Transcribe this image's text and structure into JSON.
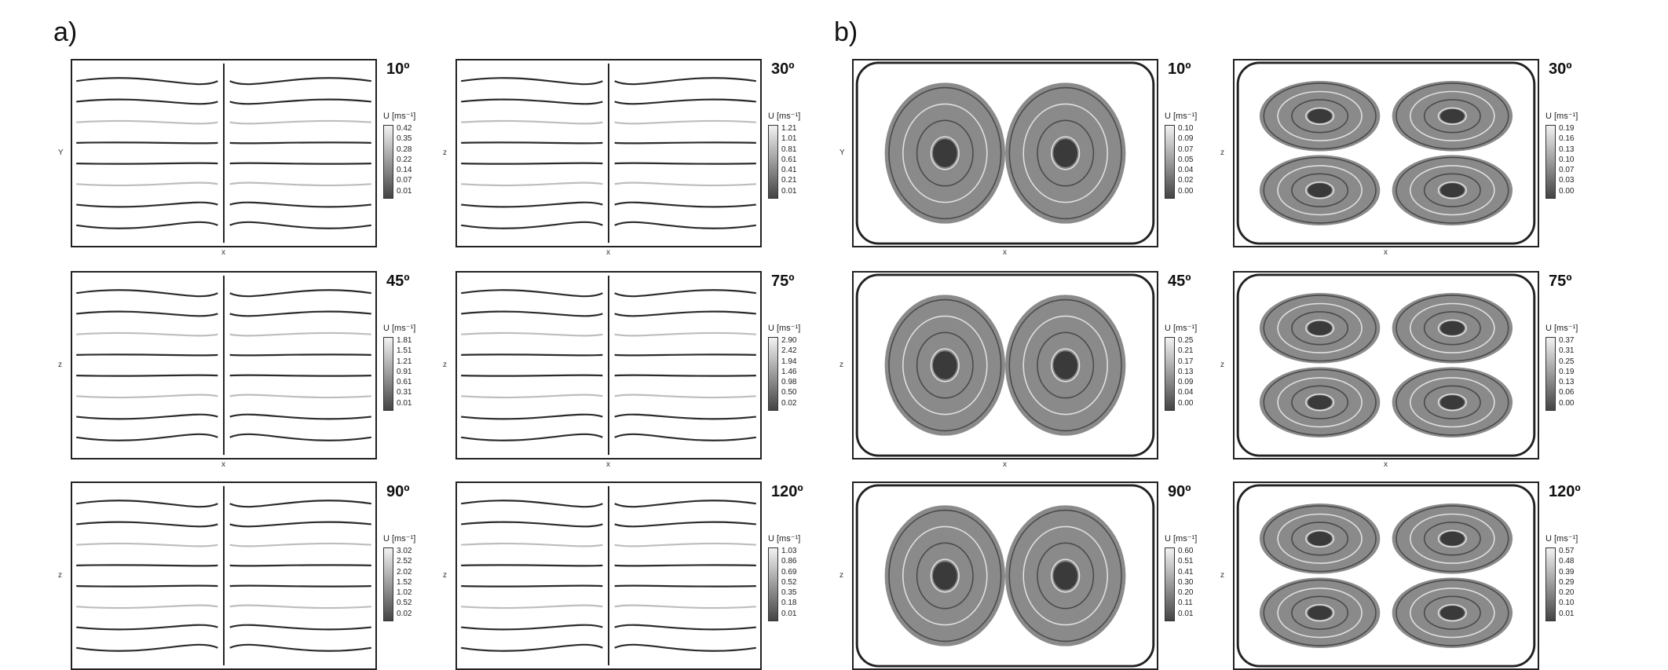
{
  "panels": [
    {
      "label": "a)",
      "plots": [
        {
          "angle": "10º",
          "v_axis": "Y",
          "h_axis": "x",
          "unit": "U [ms⁻¹]",
          "ticks": [
            "0.42",
            "0.35",
            "0.28",
            "0.22",
            "0.14",
            "0.07",
            "0.01"
          ]
        },
        {
          "angle": "30º",
          "v_axis": "z",
          "h_axis": "x",
          "unit": "U [ms⁻¹]",
          "ticks": [
            "1.21",
            "1.01",
            "0.81",
            "0.61",
            "0.41",
            "0.21",
            "0.01"
          ]
        },
        {
          "angle": "45º",
          "v_axis": "z",
          "h_axis": "x",
          "unit": "U [ms⁻¹]",
          "ticks": [
            "1.81",
            "1.51",
            "1.21",
            "0.91",
            "0.61",
            "0.31",
            "0.01"
          ]
        },
        {
          "angle": "75º",
          "v_axis": "z",
          "h_axis": "x",
          "unit": "U [ms⁻¹]",
          "ticks": [
            "2.90",
            "2.42",
            "1.94",
            "1.46",
            "0.98",
            "0.50",
            "0.02"
          ]
        },
        {
          "angle": "90º",
          "v_axis": "z",
          "h_axis": "",
          "unit": "U [ms⁻¹]",
          "ticks": [
            "3.02",
            "2.52",
            "2.02",
            "1.52",
            "1.02",
            "0.52",
            "0.02"
          ]
        },
        {
          "angle": "120º",
          "v_axis": "z",
          "h_axis": "",
          "unit": "U [ms⁻¹]",
          "ticks": [
            "1.03",
            "0.86",
            "0.69",
            "0.52",
            "0.35",
            "0.18",
            "0.01"
          ]
        }
      ]
    },
    {
      "label": "b)",
      "plots": [
        {
          "angle": "10º",
          "v_axis": "Y",
          "h_axis": "x",
          "unit": "U [ms⁻¹]",
          "ticks": [
            "0.10",
            "0.09",
            "0.07",
            "0.05",
            "0.04",
            "0.02",
            "0.00"
          ]
        },
        {
          "angle": "30º",
          "v_axis": "z",
          "h_axis": "x",
          "unit": "U [ms⁻¹]",
          "ticks": [
            "0.19",
            "0.16",
            "0.13",
            "0.10",
            "0.07",
            "0.03",
            "0.00"
          ]
        },
        {
          "angle": "45º",
          "v_axis": "z",
          "h_axis": "x",
          "unit": "U [ms⁻¹]",
          "ticks": [
            "0.25",
            "0.21",
            "0.17",
            "0.13",
            "0.09",
            "0.04",
            "0.00"
          ]
        },
        {
          "angle": "75º",
          "v_axis": "z",
          "h_axis": "x",
          "unit": "U [ms⁻¹]",
          "ticks": [
            "0.37",
            "0.31",
            "0.25",
            "0.19",
            "0.13",
            "0.06",
            "0.00"
          ]
        },
        {
          "angle": "90º",
          "v_axis": "z",
          "h_axis": "",
          "unit": "U [ms⁻¹]",
          "ticks": [
            "0.60",
            "0.51",
            "0.41",
            "0.30",
            "0.20",
            "0.11",
            "0.01"
          ]
        },
        {
          "angle": "120º",
          "v_axis": "z",
          "h_axis": "",
          "unit": "U [ms⁻¹]",
          "ticks": [
            "0.57",
            "0.48",
            "0.39",
            "0.29",
            "0.20",
            "0.10",
            "0.01"
          ]
        }
      ]
    }
  ]
}
